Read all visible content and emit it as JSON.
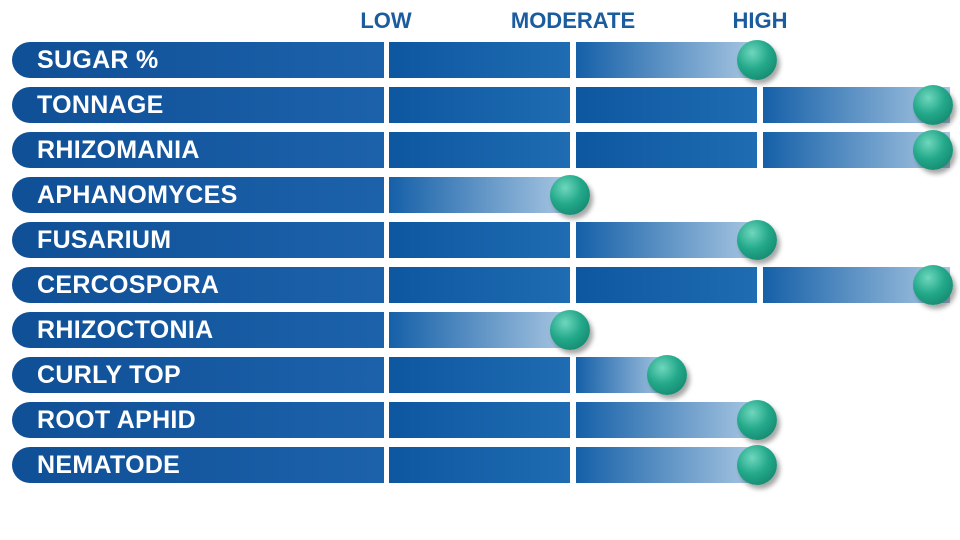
{
  "chart_data": {
    "type": "bar",
    "title": "",
    "scale_labels": [
      "LOW",
      "MODERATE",
      "HIGH"
    ],
    "scale_range": [
      0,
      3
    ],
    "categories": [
      "SUGAR %",
      "TONNAGE",
      "RHIZOMANIA",
      "APHANOMYCES",
      "FUSARIUM",
      "CERCOSPORA",
      "RHIZOCTONIA",
      "CURLY TOP",
      "ROOT APHID",
      "NEMATODE"
    ],
    "values": [
      2,
      3,
      3,
      1,
      2,
      3,
      1,
      1.5,
      2,
      2
    ]
  },
  "colors": {
    "bar": "#0d57a0",
    "ball": "#23a88a",
    "header": "#1a5c9e"
  }
}
